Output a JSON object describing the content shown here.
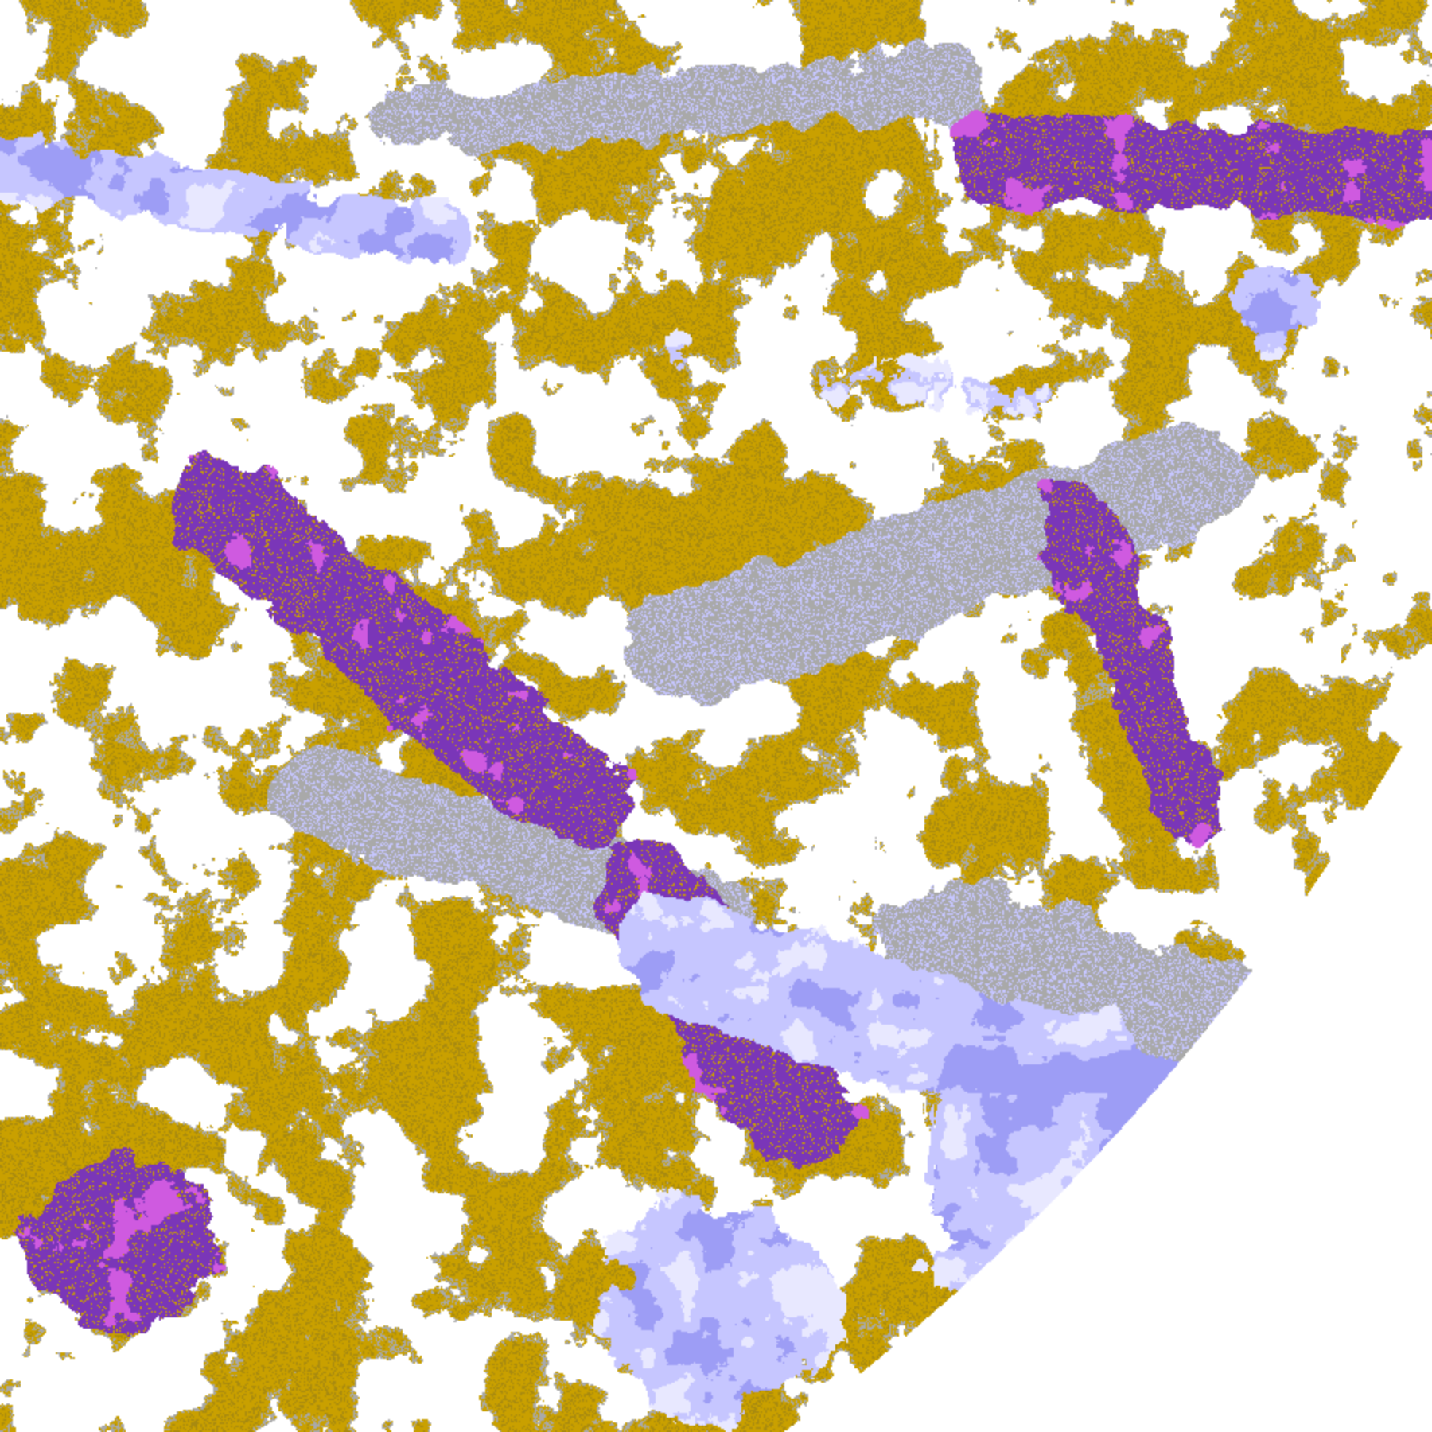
{
  "image": {
    "kind": "false-color satellite cloud imagery",
    "palette": {
      "background": "#ffffff",
      "gold": "#c9a000",
      "dark_gold": "#a88a10",
      "purple": "#7a36b8",
      "magenta": "#cf5ae0",
      "gray": "#a9a9a9",
      "lavender": "#c6c6ff",
      "periwinkle": "#9d9df5",
      "pale": "#e8e8ff"
    }
  }
}
